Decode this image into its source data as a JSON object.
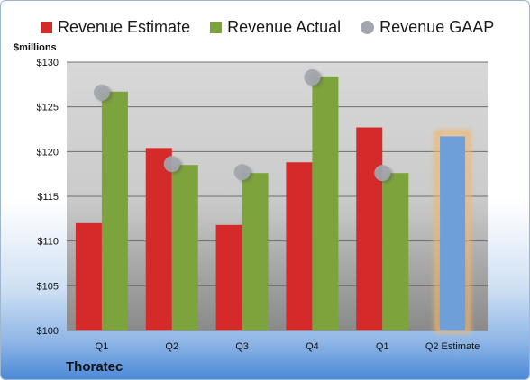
{
  "chart_data": {
    "type": "bar",
    "ylabel": "$millions",
    "categories": [
      "Q1",
      "Q2",
      "Q3",
      "Q4",
      "Q1",
      "Q2 Estimate"
    ],
    "ylim": [
      100,
      130
    ],
    "ytick_values": [
      100,
      105,
      110,
      115,
      120,
      125,
      130
    ],
    "ytick_labels": [
      "$100",
      "$105",
      "$110",
      "$115",
      "$120",
      "$125",
      "$130"
    ],
    "series": [
      {
        "name": "Revenue Estimate",
        "kind": "bar",
        "color": "#d42a2a",
        "values": [
          112.0,
          120.4,
          111.8,
          118.8,
          122.7,
          null
        ]
      },
      {
        "name": "Revenue Actual",
        "kind": "bar",
        "color": "#7da33c",
        "values": [
          126.7,
          118.5,
          117.6,
          128.4,
          117.6,
          null
        ]
      },
      {
        "name": "Revenue GAAP",
        "kind": "marker",
        "color": "#a3a6ad",
        "values": [
          126.6,
          118.6,
          117.7,
          128.3,
          117.6,
          null
        ]
      },
      {
        "name": "Q2 Estimate",
        "kind": "bar",
        "color": "#6f9fd8",
        "highlight": "#f2b66a",
        "values": [
          null,
          null,
          null,
          null,
          null,
          121.7
        ]
      }
    ],
    "legend_position": "top",
    "grid": true
  },
  "footer": {
    "company": "Thoratec"
  }
}
